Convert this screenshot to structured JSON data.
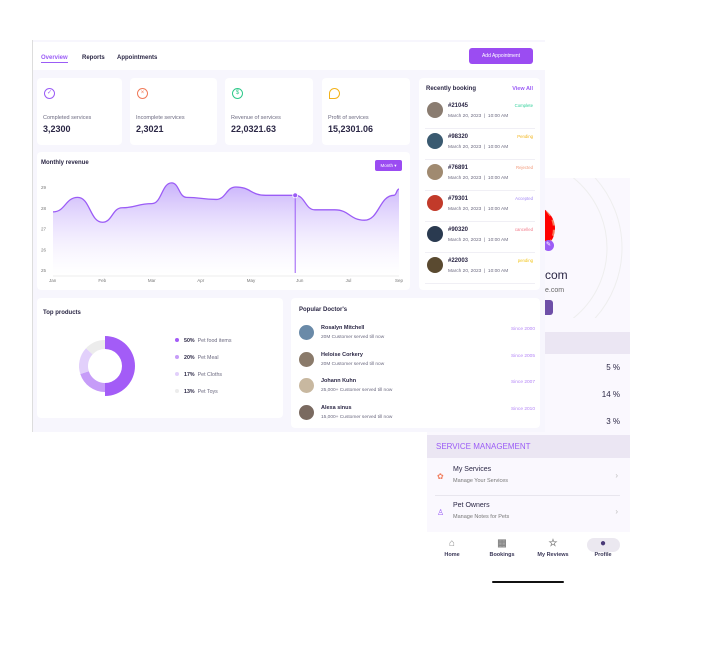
{
  "dashboard": {
    "tabs": [
      {
        "label": "Overview",
        "active": true
      },
      {
        "label": "Reports"
      },
      {
        "label": "Appointments"
      }
    ],
    "add_appointment": "Add Appointment",
    "stats": [
      {
        "label": "Completed services",
        "value": "3,2300",
        "icon": "check-circle-icon",
        "color": "#9b5cf6"
      },
      {
        "label": "Incomplete services",
        "value": "2,3021",
        "icon": "x-circle-icon",
        "color": "#f07b5a"
      },
      {
        "label": "Revenue of services",
        "value": "22,0321.63",
        "icon": "dollar-circle-icon",
        "color": "#2fc98a"
      },
      {
        "label": "Profit of services",
        "value": "15,2301.06",
        "icon": "pie-icon",
        "color": "#f3b21b"
      }
    ],
    "recent": {
      "title": "Recently booking",
      "view_all": "View All",
      "items": [
        {
          "id": "#21045",
          "date": "March 20, 2023",
          "time": "10:00 AM",
          "status": "Complete",
          "color": "#2fd09a",
          "avatar": "#8a7c70"
        },
        {
          "id": "#98320",
          "date": "March 20, 2023",
          "time": "10:00 AM",
          "status": "Pending",
          "color": "#f2b51a",
          "avatar": "#3a5a70"
        },
        {
          "id": "#76891",
          "date": "March 20, 2023",
          "time": "10:00 AM",
          "status": "Rejected",
          "color": "#f29a7a",
          "avatar": "#a08a70"
        },
        {
          "id": "#79301",
          "date": "March 20, 2023",
          "time": "10:00 AM",
          "status": "Accepted",
          "color": "#a58af5",
          "avatar": "#c23a2a"
        },
        {
          "id": "#90320",
          "date": "March 20, 2023",
          "time": "10:00 AM",
          "status": "cancelled",
          "color": "#f27a8a",
          "avatar": "#2a3a50"
        },
        {
          "id": "#22003",
          "date": "March 20, 2023",
          "time": "10:00 AM",
          "status": "pending",
          "color": "#f2c51a",
          "avatar": "#5a4a30"
        }
      ]
    },
    "revenue": {
      "title": "Monthly revenue",
      "period": "Month"
    },
    "top_products": {
      "title": "Top products"
    },
    "doctors": {
      "title": "Popular Doctor's",
      "items": [
        {
          "name": "Rosalyn Mitchell",
          "desc": "20M Customer served till now",
          "since": "Since 2000"
        },
        {
          "name": "Heloise Corkery",
          "desc": "20M Customer served till now",
          "since": "Since 2005"
        },
        {
          "name": "Johann Kuhn",
          "desc": "25,000+ Customer served till now",
          "since": "Since 2007"
        },
        {
          "name": "Alexa sinus",
          "desc": "15,000+ Customer served till now",
          "since": "Since 2010"
        }
      ]
    }
  },
  "chart_data": [
    {
      "type": "area",
      "title": "Monthly revenue",
      "categories": [
        "Jan",
        "Feb",
        "Mar",
        "Apr",
        "May",
        "Jun",
        "Jul",
        "Sep"
      ],
      "x": [
        0,
        0.5,
        1,
        1.4,
        2,
        2.4,
        2.7,
        3.3,
        3.7,
        4.3,
        4.9,
        5.3,
        5.7,
        6.3,
        6.9,
        7.0
      ],
      "y": [
        27.8,
        28.5,
        27.3,
        28.0,
        28.2,
        29.2,
        28.5,
        28.4,
        29.0,
        28.6,
        28.6,
        27.9,
        27.9,
        27.4,
        28.6,
        28.9
      ],
      "ylim": [
        25,
        29
      ],
      "yticks": [
        25,
        26,
        27,
        28,
        29
      ],
      "highlight_index": 10,
      "color": "#9b5cf6"
    },
    {
      "type": "pie",
      "title": "Top products",
      "categories": [
        "Pet food items",
        "Pet Meal",
        "Pet Cloths",
        "Pet Toys"
      ],
      "values": [
        50,
        20,
        17,
        13
      ],
      "labels": [
        "50%",
        "20%",
        "17%",
        "13%"
      ],
      "colors": [
        "#a35cf7",
        "#c69cf8",
        "#e2d0fb",
        "#ececec"
      ]
    }
  ],
  "phone": {
    "email_partial": "com",
    "email_sub": "e.com",
    "percents": [
      "5 %",
      "14 %",
      "3 %"
    ],
    "section": "SERVICE MANAGEMENT",
    "items": [
      {
        "title": "My Services",
        "sub": "Manage Your Services"
      },
      {
        "title": "Pet Owners",
        "sub": "Manage Notes for Pets"
      }
    ],
    "nav": [
      {
        "label": "Home",
        "icon": "home-icon"
      },
      {
        "label": "Bookings",
        "icon": "calendar-icon"
      },
      {
        "label": "My Reviews",
        "icon": "star-icon"
      },
      {
        "label": "Profile",
        "icon": "user-icon",
        "active": true
      }
    ]
  }
}
